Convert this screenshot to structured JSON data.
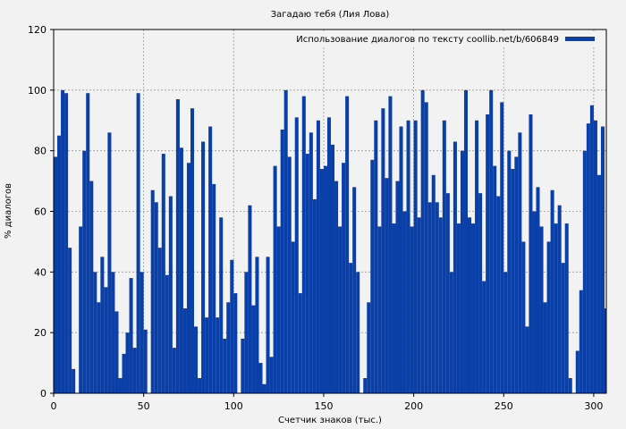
{
  "chart_data": {
    "type": "bar",
    "title": "Загадаю тебя (Лия Лова)",
    "xlabel": "Счетчик знаков (тыс.)",
    "ylabel": "% диалогов",
    "xlim": [
      0,
      307
    ],
    "ylim": [
      0,
      120
    ],
    "xticks": [
      0,
      50,
      100,
      150,
      200,
      250,
      300
    ],
    "yticks": [
      0,
      20,
      40,
      60,
      80,
      100,
      120
    ],
    "grid": true,
    "legend_position": "top-right",
    "series": [
      {
        "name": "Использование диалогов по тексту coollib.net/b/606849",
        "color": "#0a3fa8",
        "x": [
          0,
          2,
          4,
          6,
          8,
          10,
          12,
          14,
          16,
          18,
          20,
          22,
          24,
          26,
          28,
          30,
          32,
          34,
          36,
          38,
          40,
          42,
          44,
          46,
          48,
          50,
          52,
          54,
          56,
          58,
          60,
          62,
          64,
          66,
          68,
          70,
          72,
          74,
          76,
          78,
          80,
          82,
          84,
          86,
          88,
          90,
          92,
          94,
          96,
          98,
          100,
          102,
          104,
          106,
          108,
          110,
          112,
          114,
          116,
          118,
          120,
          122,
          124,
          126,
          128,
          130,
          132,
          134,
          136,
          138,
          140,
          142,
          144,
          146,
          148,
          150,
          152,
          154,
          156,
          158,
          160,
          162,
          164,
          166,
          168,
          170,
          172,
          174,
          176,
          178,
          180,
          182,
          184,
          186,
          188,
          190,
          192,
          194,
          196,
          198,
          200,
          202,
          204,
          206,
          208,
          210,
          212,
          214,
          216,
          218,
          220,
          222,
          224,
          226,
          228,
          230,
          232,
          234,
          236,
          238,
          240,
          242,
          244,
          246,
          248,
          250,
          252,
          254,
          256,
          258,
          260,
          262,
          264,
          266,
          268,
          270,
          272,
          274,
          276,
          278,
          280,
          282,
          284,
          286,
          288,
          290,
          292,
          294,
          296,
          298,
          300,
          302,
          304,
          306
        ],
        "values": [
          78,
          85,
          100,
          99,
          48,
          8,
          0,
          55,
          80,
          99,
          70,
          40,
          30,
          45,
          35,
          86,
          40,
          27,
          5,
          13,
          20,
          38,
          15,
          99,
          40,
          21,
          0,
          67,
          63,
          48,
          79,
          39,
          65,
          15,
          97,
          81,
          28,
          76,
          94,
          22,
          5,
          83,
          25,
          88,
          69,
          25,
          58,
          18,
          30,
          44,
          33,
          0,
          18,
          40,
          62,
          29,
          45,
          10,
          3,
          45,
          12,
          75,
          55,
          87,
          100,
          78,
          50,
          91,
          33,
          98,
          79,
          86,
          64,
          90,
          74,
          75,
          91,
          82,
          70,
          55,
          76,
          98,
          43,
          68,
          40,
          0,
          5,
          30,
          77,
          90,
          55,
          94,
          71,
          98,
          56,
          70,
          88,
          60,
          90,
          55,
          90,
          58,
          100,
          96,
          63,
          72,
          63,
          58,
          90,
          66,
          40,
          83,
          56,
          80,
          100,
          58,
          56,
          90,
          66,
          37,
          92,
          100,
          75,
          65,
          96,
          40,
          80,
          74,
          78,
          86,
          50,
          22,
          92,
          60,
          68,
          55,
          30,
          50,
          67,
          56,
          62,
          43,
          56,
          5,
          0,
          14,
          34,
          80,
          89,
          95,
          90,
          72,
          88,
          28
        ]
      }
    ]
  }
}
